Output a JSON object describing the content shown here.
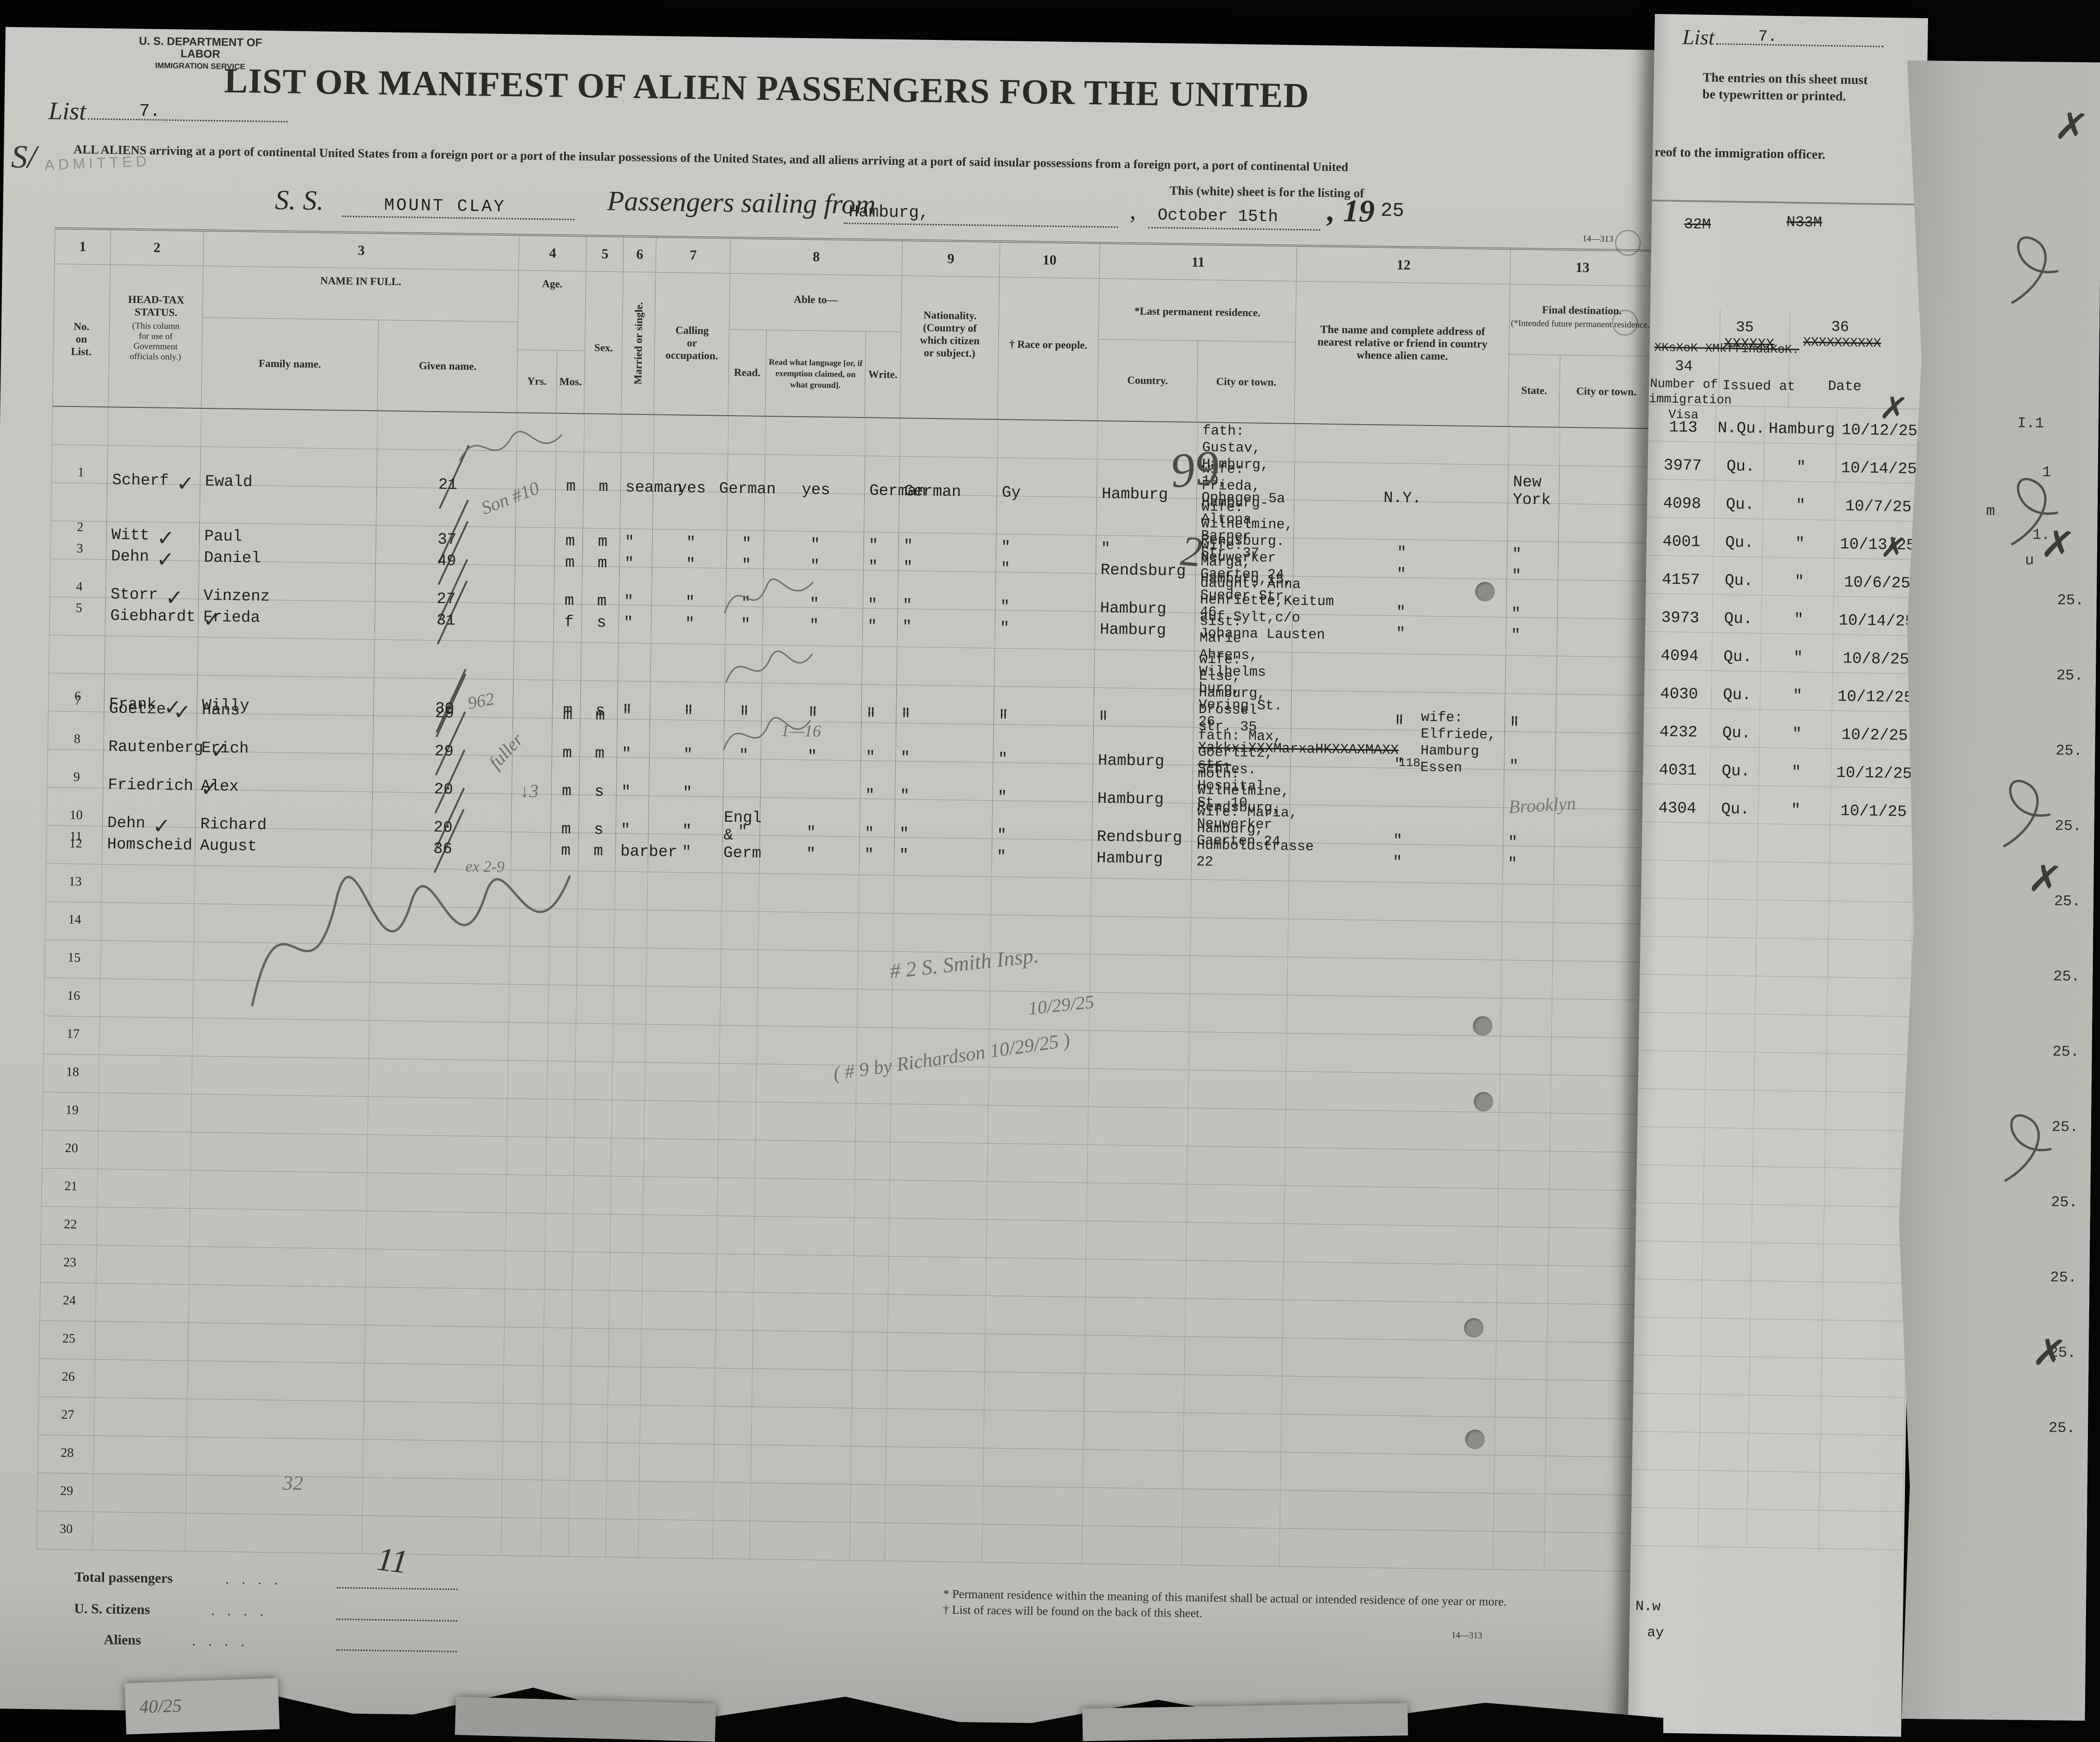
{
  "scan": {
    "agency_line1": "U. S. DEPARTMENT OF LABOR",
    "agency_line2": "IMMIGRATION SERVICE",
    "list_label": "List",
    "list_number": "7.",
    "title": "LIST OR MANIFEST OF ALIEN PASSENGERS FOR THE UNITED",
    "subtitle": "ALL ALIENS arriving at a port of continental United States from a foreign port or a port of the insular possessions of the United States, and all aliens arriving at a port of said insular possessions from a foreign port, a port of continental United",
    "subtitle2": "This (white) sheet is for the listing of",
    "ss_label": "S. S.",
    "ship_name": "MOUNT CLAY",
    "sailing_label": "Passengers sailing from",
    "port": "Hamburg,",
    "sail_date": "October 15th",
    "year_printed": ", 19",
    "year_typed": "25",
    "form_number_top": "14—313",
    "form_number_bottom": "14—313"
  },
  "table_header": {
    "c1_num": "1",
    "c1_label": "No.\non\nList.",
    "c2_num": "2",
    "c2_label": "HEAD-TAX\nSTATUS.",
    "c2_sub": "(This column\nfor use of\nGovernment\nofficials only.)",
    "c3_num": "3",
    "c3_label": "NAME IN FULL.",
    "c3_sub1": "Family name.",
    "c3_sub2": "Given name.",
    "c4_num": "4",
    "c4_label": "Age.",
    "c4_sub1": "Yrs.",
    "c4_sub2": "Mos.",
    "c5_num": "5",
    "c5_label": "Sex.",
    "c6_num": "6",
    "c6_label": "Married or single.",
    "c7_num": "7",
    "c7_label": "Calling\nor\noccupation.",
    "c8_num": "8",
    "c8_label": "Able to—",
    "c8_sub1": "Read.",
    "c8_sub2": "Read what language [or, if exemption claimed, on what ground].",
    "c8_sub3": "Write.",
    "c9_num": "9",
    "c9_label": "Nationality.\n(Country of\nwhich citizen\nor subject.)",
    "c10_num": "10",
    "c10_label": "† Race or people.",
    "c11_num": "11",
    "c11_label": "*Last permanent residence.",
    "c11_sub1": "Country.",
    "c11_sub2": "City or town.",
    "c12_num": "12",
    "c12_label": "The name and complete address of nearest relative or friend in country whence alien came.",
    "c13_num": "13",
    "c13_label": "Final destination.",
    "c13_sub": "(*Intended future permanent residence.)",
    "c13_sub1": "State.",
    "c13_sub2": "City or town."
  },
  "rows": [
    {
      "no": "1",
      "family": "Scherf",
      "given": "Ewald",
      "yrs": "21",
      "mos": "",
      "sex": "m",
      "ms": "m",
      "calling": "seaman",
      "read": "yes",
      "lang": "German",
      "write": "yes",
      "nat": "German",
      "race": "German",
      "country": "Gy",
      "city": "Hamburg",
      "rel": "fath: Gustav, Hamburg, 19,\nOphagen 5a",
      "state": "N.Y.",
      "dest": "New York",
      "visa": "113",
      "qu": "N.Qu.",
      "issued": "Hamburg",
      "date": "10/12/25",
      "check": true
    },
    {
      "no": "2",
      "family": "Witt",
      "given": "Paul",
      "yrs": "37",
      "mos": "",
      "sex": "m",
      "ms": "m",
      "calling": "\"",
      "read": "\"",
      "lang": "\"",
      "write": "\"",
      "nat": "\"",
      "race": "\"",
      "country": "\"",
      "city": "\"",
      "rel": "wife: Frieda, Hamburg-Altona\nBarner Str. 37",
      "state": "\"",
      "dest": "\"",
      "visa": "3977",
      "qu": "Qu.",
      "issued": "\"",
      "date": "10/14/25",
      "check": true
    },
    {
      "no": "3",
      "family": "Dehn",
      "given": "Daniel",
      "yrs": "49",
      "mos": "",
      "sex": "m",
      "ms": "m",
      "calling": "\"",
      "read": "\"",
      "lang": "\"",
      "write": "\"",
      "nat": "\"",
      "race": "\"",
      "country": "\"",
      "city": "Rendsburg",
      "rel": "wife: Wilhelmine, Rendsburg.\nNeuwerker Gaerten 24",
      "state": "\"",
      "dest": "\"",
      "visa": "4098",
      "qu": "Qu.",
      "issued": "\"",
      "date": "10/7/25",
      "check": true
    },
    {
      "no": "4",
      "family": "Storr",
      "given": "Vinzenz",
      "yrs": "27",
      "mos": "",
      "sex": "m",
      "ms": "m",
      "calling": "\"",
      "read": "\"",
      "lang": "\"",
      "write": "\"",
      "nat": "\"",
      "race": "\"",
      "country": "\"",
      "city": "Hamburg",
      "rel": "wife: Marga, Hamburg,15,\nSueder Str. 46",
      "state": "\"",
      "dest": "\"",
      "visa": "4001",
      "qu": "Qu.",
      "issued": "\"",
      "date": "10/13/25",
      "check": true
    },
    {
      "no": "5",
      "family": "Giebhardt",
      "given": "Frieda",
      "yrs": "31",
      "mos": "",
      "sex": "f",
      "ms": "s",
      "calling": "\"",
      "read": "\"",
      "lang": "\"",
      "write": "\"",
      "nat": "\"",
      "race": "\"",
      "country": "\"",
      "city": "Hamburg",
      "rel": "daught: Anna Henriette,Keitum\nauf Sylt,c/o Johanna Lausten",
      "state": "\"",
      "dest": "\"",
      "visa": "4157",
      "qu": "Qu.",
      "issued": "\"",
      "date": "10/6/25",
      "check": true
    },
    {
      "no": "6",
      "family": "Frank",
      "given": "Willy",
      "yrs": "30",
      "mos": "",
      "sex": "m",
      "ms": "s",
      "calling": "\"",
      "read": "\"",
      "lang": "\"",
      "write": "\"",
      "nat": "\"",
      "race": "\"",
      "country": "\"",
      "city": "\"",
      "rel": "sist: Marie Ahrens, Wilhelms\nburg, Vering St. 26",
      "state": "\"",
      "dest": "\"",
      "visa": "3973",
      "qu": "Qu.",
      "issued": "\"",
      "date": "10/14/25",
      "check": true
    },
    {
      "no": "7",
      "family": "Goetze",
      "given": "Hans",
      "yrs": "29",
      "mos": "",
      "sex": "m",
      "ms": "m",
      "calling": "\"",
      "read": "\"",
      "lang": "\"",
      "write": "\"",
      "nat": "\"",
      "race": "\"",
      "country": "\"",
      "city": "\"",
      "rel": "wife: Else, Hamburg, Drossel\nstr. 35",
      "state": "\"",
      "dest": "\"",
      "visa": "4094",
      "qu": "Qu.",
      "issued": "\"",
      "date": "10/8/25",
      "check": true
    },
    {
      "no": "8",
      "family": "Rautenberg",
      "given": "Erich",
      "yrs": "29",
      "mos": "",
      "sex": "m",
      "ms": "m",
      "calling": "\"",
      "read": "\"",
      "lang": "\"",
      "write": "\"",
      "nat": "\"",
      "race": "\"",
      "country": "\"",
      "city": "Hamburg",
      "rel_struck": "XakkxiXXXMarxaHKXXAXMAXX str.",
      "rel_super": "118",
      "rel": "wife: Elfriede, Hamburg Essen",
      "state": "\"",
      "dest": "\"",
      "visa": "4030",
      "qu": "Qu.",
      "issued": "\"",
      "date": "10/12/25",
      "check": true
    },
    {
      "no": "9",
      "family": "Friedrich",
      "given": "Alex",
      "yrs": "20",
      "mos": "",
      "sex": "m",
      "ms": "s",
      "calling": "\"",
      "read": "\"",
      "lang": "",
      "write": "",
      "nat": "\"",
      "race": "\"",
      "country": "\"",
      "city": "Hamburg",
      "rel": "fath: Max, Goerlitz, Schles.\nHospital St. 10",
      "state": "",
      "dest": "",
      "dest_hw": "Brooklyn",
      "visa": "4232",
      "qu": "Qu.",
      "issued": "\"",
      "date": "10/2/25",
      "check": true
    },
    {
      "no": "10",
      "family": "Dehn",
      "given": "Richard",
      "yrs": "20",
      "mos": "",
      "sex": "m",
      "ms": "s",
      "calling": "\"",
      "read": "\"",
      "lang": "\"",
      "write": "\"",
      "nat": "\"",
      "race": "\"",
      "country": "\"",
      "city": "Rendsburg",
      "rel": "moth: Wilhelmine, Rendsburg,\nNeuwerker Gaerten 24",
      "state": "\"",
      "dest": "\"",
      "visa": "4031",
      "qu": "Qu.",
      "issued": "\"",
      "date": "10/12/25",
      "check": true
    },
    {
      "no": "11",
      "family": "Homscheid",
      "given": "August",
      "yrs": "36",
      "mos": "",
      "sex": "m",
      "ms": "m",
      "calling": "barber",
      "read": "\"",
      "lang": "Engl & Germ",
      "write": "\"",
      "nat": "\"",
      "race": "\"",
      "country": "\"",
      "city": "Hamburg",
      "rel": "wife: Maria, Hamburg,\nHumboldstrasse 22",
      "state": "\"",
      "dest": "\"",
      "visa": "4304",
      "qu": "Qu.",
      "issued": "\"",
      "date": "10/1/25",
      "check": false
    }
  ],
  "empty_rows": [
    "12",
    "13",
    "14",
    "15",
    "16",
    "17",
    "18",
    "19",
    "20",
    "21",
    "22",
    "23",
    "24",
    "25",
    "26",
    "27",
    "28",
    "29",
    "30"
  ],
  "right_sheet": {
    "list_label": "List",
    "list_number": "7.",
    "notice_line1": "The entries on this sheet must",
    "notice_line2": "be typewritten or printed.",
    "notice_frag": "reof to the immigration officer.",
    "struck_a": "32M",
    "struck_b": "N33M",
    "struck_c": "XKsXoK XMkffihdaKoK.",
    "struck_d": "XXXXXX",
    "struck_e": "XXXXXXXXXX",
    "c34_num": "34",
    "c34_label": "Number of\nimmigration\nVisa",
    "c35_num": "35",
    "c35_label": "Issued at",
    "c36_num": "36",
    "c36_label": "Date",
    "frag1": "N.w",
    "frag2": "ay"
  },
  "footer": {
    "total_label": "Total passengers",
    "citizens_label": "U. S. citizens",
    "aliens_label": "Aliens",
    "leader_dots": ".    .    .    .",
    "total_value": "11",
    "footnote1": "* Permanent residence within the meaning of this manifest shall be actual or intended residence of one year or more.",
    "footnote2": "† List of races will be found on the back of this sheet."
  },
  "annotations": {
    "s_mark": "S/",
    "admitted": "ADMITTED",
    "row3_note": "Son #10",
    "big_nine": "99",
    "big_two": "2",
    "row9_note": "962",
    "row9_note2": "fuller",
    "row9_note3": "↓3",
    "row9_lang": "1—16",
    "row30_note": "32",
    "scrawl_sup": "ex 2-9",
    "note2a": "# 2 S. Smith Insp.",
    "note2b": "10/29/25",
    "note3": "( # 9 by Richardson 10/29/25 )",
    "scrap_text": "40/25",
    "fragments": [
      "I.1",
      "1",
      "m",
      "1.",
      "u"
    ],
    "behind_dates": [
      "25.",
      "25.",
      "25.",
      "25.",
      "25.",
      "25.",
      "25.",
      "25.",
      "25.",
      "25.",
      "25.",
      "25."
    ]
  }
}
